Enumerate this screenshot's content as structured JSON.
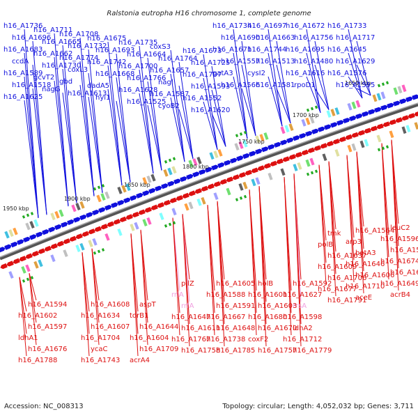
{
  "title": "Ralstonia eutropha H16 chromosome 1, complete genome",
  "footer": {
    "accession": "Accession: NC_008313",
    "summary": "Topology: circular; Length: 4,052,032 bp; Genes: 3,711"
  },
  "colors": {
    "plus": "#1010dd",
    "minus": "#dd1010",
    "rna": "#f0a0e0",
    "backbone": "#888888"
  },
  "kbp_labels": [
    "1650 kbp",
    "1700 kbp",
    "1750 kbp",
    "1800 kbp",
    "1850 kbp",
    "1900 kbp",
    "1950 kbp"
  ],
  "top_labels": [
    "h16_A1736",
    "h16_A1711",
    "h16_A1708",
    "h16_A1675",
    "h16_A1735",
    "coxS3",
    "h16_A1673",
    "h16_A1734",
    "h16_A1697",
    "h16_A1672",
    "h16_A1733",
    "h16_A1696",
    "h16_A1665",
    "h16_A1732",
    "h16_A1693",
    "h16_A1664",
    "h16_A1764",
    "h16_A1725",
    "h16_A1690",
    "h16_A1663",
    "h16_A1756",
    "h16_A1717",
    "h16_A1683",
    "h16_A1662",
    "h16_A1774",
    "h16_A1742",
    "h16_A1700",
    "h16_A1657",
    "h16_A1707",
    "h16_A1671",
    "h16_A1744",
    "h16_A1695",
    "h16_A1645",
    "ccdA",
    "h16_A1730",
    "coxL3",
    "h16_A1668",
    "h16_A1766",
    "nagl",
    "h16_A1593",
    "h16_A1557",
    "h16_A1513",
    "h16_A1480",
    "h16_A1629",
    "h16_A1589",
    "gcvT2",
    "gbd",
    "dadA5",
    "h16_A1628",
    "h16_A1587",
    "h16_A1552",
    "gatA3",
    "cysI2",
    "h16_A1616",
    "h16_A1576",
    "h16_A1518",
    "nagG",
    "h16_A1613",
    "hyi1",
    "h16_A1525",
    "cyoB2",
    "h16_A1620",
    "h16_A1566",
    "h16_A1581",
    "rpoD1",
    "h16_A1595",
    "h16_A1625"
  ],
  "bottom_labels": [
    "leuC2",
    "h16_A1564",
    "tmk",
    "h16_A1592",
    "holB",
    "h16_A1605",
    "pilZ",
    "aspT",
    "h16_A1608",
    "h16_A1594",
    "h16_A1596",
    "arp3",
    "polB",
    "h16_A1627",
    "h16_A1601",
    "h16_A1588",
    "rrlA",
    "torB1",
    "h16_A1634",
    "h16_A1602",
    "h16_A1590",
    "betA3",
    "h16_A1637",
    "rrsA",
    "h16_A1603",
    "h16_A1591",
    "rrfA",
    "h16_A1644",
    "h16_A1607",
    "h16_A1597",
    "h16_A1674",
    "h16_A1646",
    "h16_A1609",
    "h16_A1598",
    "h16_A1680",
    "h16_A1667",
    "h16_A1647",
    "h16_A1604",
    "h16_A1704",
    "ldhA1",
    "h16_A1669",
    "h16_A1606",
    "h16_A1706",
    "ldhA2",
    "h16_A1670",
    "h16_A1648",
    "h16_A1611",
    "h16_A1709",
    "ycaC",
    "h16_A1676",
    "h16_A1649",
    "h16_A1710",
    "h16_A1677",
    "h16_A1712",
    "coxF2",
    "h16_A1738",
    "h16_A1767",
    "acrA4",
    "h16_A1743",
    "h16_A1788",
    "acrB4",
    "aceE",
    "h16_A1791",
    "h16_A1779",
    "h16_A1757",
    "h16_A1785",
    "h16_A1758"
  ]
}
